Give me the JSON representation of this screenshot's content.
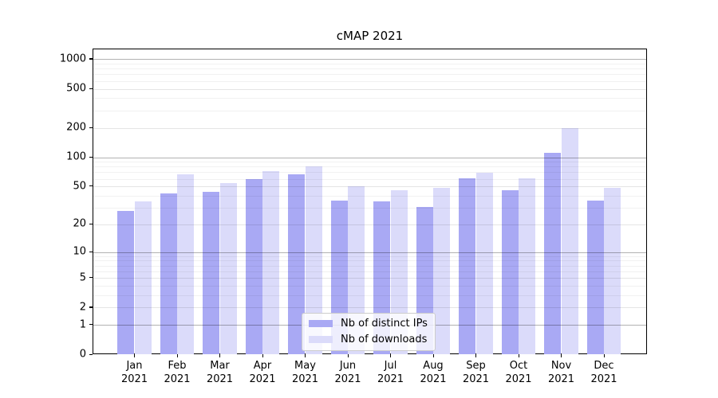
{
  "title": "cMAP 2021",
  "legend": {
    "items": [
      {
        "label": "Nb of distinct IPs",
        "color": "#a9a9f4"
      },
      {
        "label": "Nb of downloads",
        "color": "#dbdbfa"
      }
    ]
  },
  "y_axis": {
    "tick_labels": [
      "1000",
      "500",
      "200",
      "100",
      "50",
      "20",
      "10",
      "5",
      "2",
      "1",
      "0"
    ]
  },
  "chart_data": {
    "type": "bar",
    "title": "cMAP 2021",
    "categories": [
      "Jan\n2021",
      "Feb\n2021",
      "Mar\n2021",
      "Apr\n2021",
      "May\n2021",
      "Jun\n2021",
      "Jul\n2021",
      "Aug\n2021",
      "Sep\n2021",
      "Oct\n2021",
      "Nov\n2021",
      "Dec\n2021"
    ],
    "series": [
      {
        "name": "Nb of distinct IPs",
        "color": "#a9a9f4",
        "values": [
          28,
          43,
          44,
          60,
          67,
          36,
          35,
          31,
          61,
          46,
          112,
          36
        ]
      },
      {
        "name": "Nb of downloads",
        "color": "#dbdbfa",
        "values": [
          35,
          68,
          55,
          73,
          82,
          51,
          46,
          49,
          70,
          61,
          200,
          49
        ]
      }
    ],
    "xlabel": "",
    "ylabel": "",
    "yscale": "log1p-symlog",
    "y_major_ticks": [
      0,
      1,
      2,
      5,
      10,
      20,
      50,
      100,
      200,
      500,
      1000
    ],
    "y_minor_ticks": [
      3,
      4,
      6,
      7,
      8,
      9,
      30,
      40,
      60,
      70,
      80,
      90,
      300,
      400,
      600,
      700,
      800,
      900
    ],
    "ylim": [
      0,
      1270
    ],
    "grid": "horizontal major+minor, drawn over bars",
    "legend_position": "inside lower-center"
  }
}
